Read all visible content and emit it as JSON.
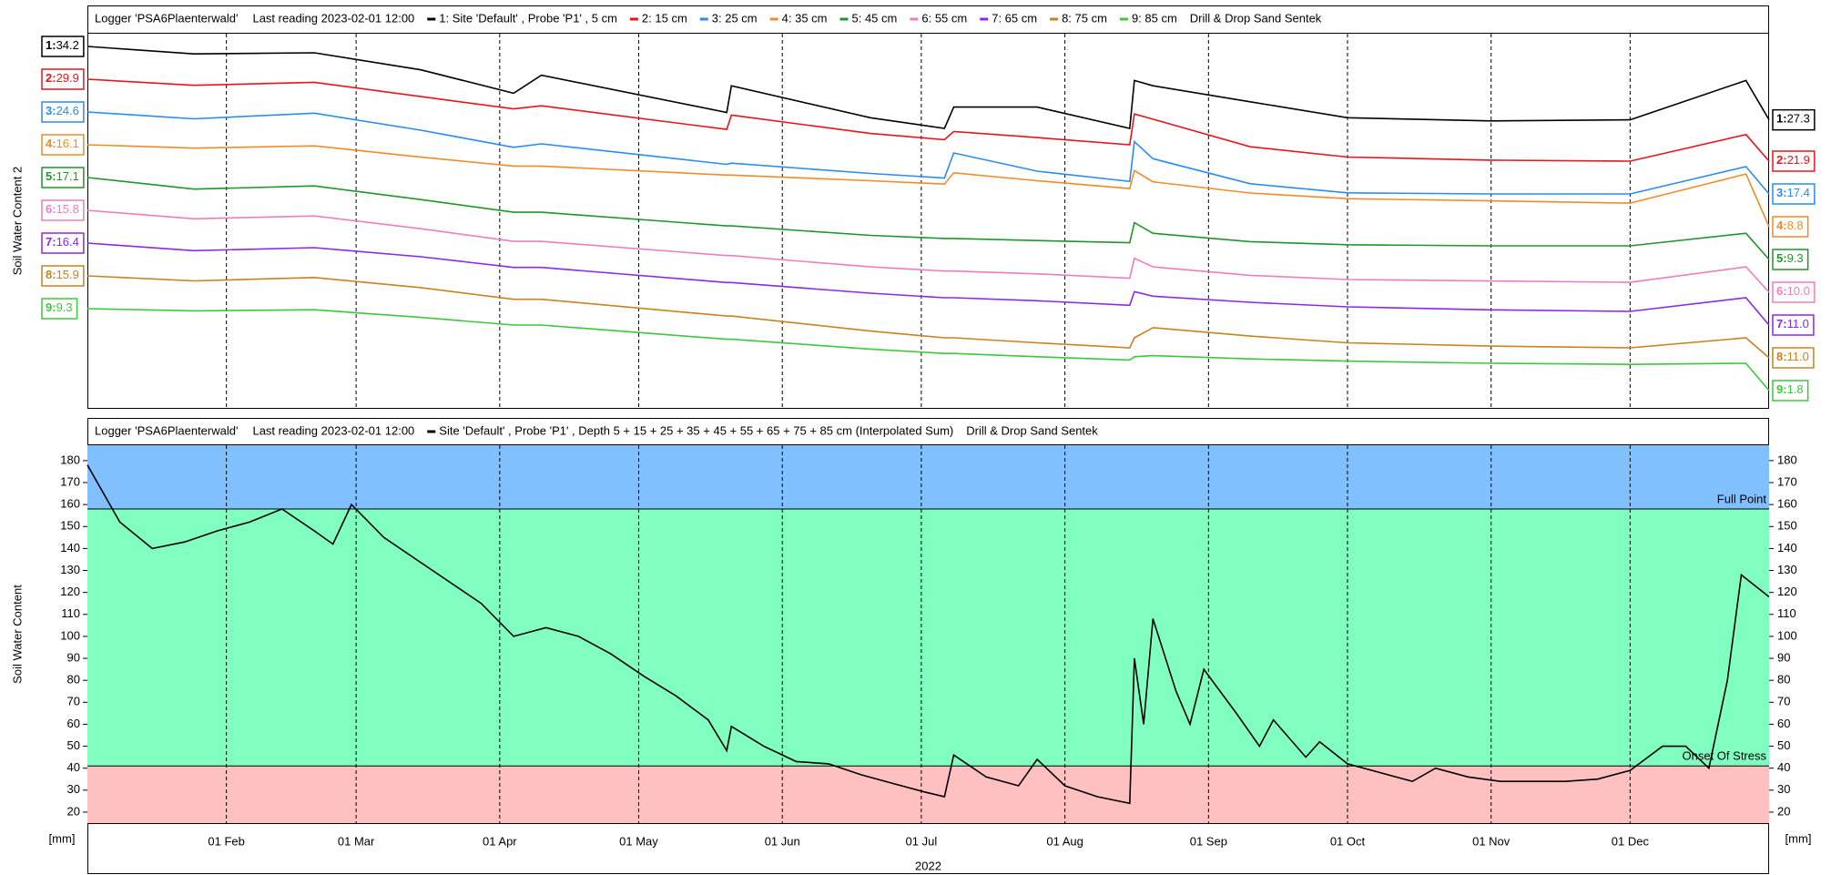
{
  "chart_data": [
    {
      "type": "line",
      "header": [
        "Logger 'PSA6Plaenterwald'",
        "Last reading 2023-02-01 12:00"
      ],
      "sensor": "Drill & Drop Sand Sentek",
      "ylabel": "Soil Water Content 2",
      "xlim": [
        "2022-01-02",
        "2022-12-31"
      ],
      "xticks": [
        {
          "value": "2022-02-01",
          "label": "01 Feb"
        },
        {
          "value": "2022-03-01",
          "label": "01 Mar"
        },
        {
          "value": "2022-04-01",
          "label": "01 Apr"
        },
        {
          "value": "2022-05-01",
          "label": "01 May"
        },
        {
          "value": "2022-06-01",
          "label": "01 Jun"
        },
        {
          "value": "2022-07-01",
          "label": "01 Jul"
        },
        {
          "value": "2022-08-01",
          "label": "01 Aug"
        },
        {
          "value": "2022-09-01",
          "label": "01 Sep"
        },
        {
          "value": "2022-10-01",
          "label": "01 Oct"
        },
        {
          "value": "2022-11-01",
          "label": "01 Nov"
        },
        {
          "value": "2022-12-01",
          "label": "01 Dec"
        }
      ],
      "x": [
        "2022-01-02",
        "2022-01-25",
        "2022-02-20",
        "2022-03-15",
        "2022-04-04",
        "2022-04-10",
        "2022-05-20",
        "2022-05-21",
        "2022-06-20",
        "2022-07-06",
        "2022-07-08",
        "2022-07-26",
        "2022-08-15",
        "2022-08-16",
        "2022-08-20",
        "2022-09-10",
        "2022-10-01",
        "2022-11-01",
        "2022-12-01",
        "2022-12-26",
        "2022-12-31"
      ],
      "series": [
        {
          "tag": "1:",
          "name": "1: Site 'Default' , Probe 'P1' , 5 cm",
          "color": "#000000",
          "labels": [
            "34.2",
            "27.3"
          ],
          "values": [
            34.2,
            33.5,
            33.6,
            32,
            29.8,
            31.5,
            28,
            30.5,
            27.5,
            26.5,
            28.5,
            28.5,
            26.5,
            31,
            30.5,
            29,
            27.5,
            27.2,
            27.3,
            31,
            27.3
          ]
        },
        {
          "tag": "2:",
          "name": "2: 15 cm",
          "color": "#e8141c",
          "labels": [
            "29.9",
            "21.9"
          ],
          "values": [
            29.9,
            29.3,
            29.6,
            28.2,
            27,
            27.3,
            25,
            26.4,
            24.6,
            24,
            24.8,
            24.2,
            23.5,
            26.5,
            26,
            23.3,
            22.3,
            22,
            21.9,
            24.5,
            21.9
          ]
        },
        {
          "tag": "3:",
          "name": "3: 25 cm",
          "color": "#2a8cf0",
          "labels": [
            "24.6",
            "17.4"
          ],
          "values": [
            24.6,
            24,
            24.5,
            23,
            21.5,
            21.8,
            20,
            20.1,
            19.2,
            18.8,
            21,
            19.4,
            18.5,
            22,
            20.5,
            18.3,
            17.5,
            17.4,
            17.4,
            19.8,
            17.4
          ]
        },
        {
          "tag": "4:",
          "name": "4: 35 cm",
          "color": "#f08c28",
          "labels": [
            "16.1",
            "8.8"
          ],
          "values": [
            16.1,
            15.8,
            16,
            15,
            14.2,
            14.2,
            13.4,
            13.4,
            12.9,
            12.6,
            13.6,
            12.9,
            12.2,
            13.8,
            12.8,
            11.8,
            11.3,
            11.1,
            10.9,
            13.5,
            8.8
          ]
        },
        {
          "tag": "5:",
          "name": "5: 45 cm",
          "color": "#1e9628",
          "labels": [
            "17.1",
            "9.3"
          ],
          "values": [
            17.1,
            16,
            16.3,
            15,
            13.8,
            13.8,
            12.5,
            12.5,
            11.6,
            11.3,
            11.3,
            11.1,
            10.9,
            12.8,
            11.8,
            11,
            10.7,
            10.6,
            10.6,
            11.8,
            9.3
          ]
        },
        {
          "tag": "6:",
          "name": "6: 55 cm",
          "color": "#f07cc0",
          "labels": [
            "15.8",
            "10.0"
          ],
          "values": [
            15.8,
            15.2,
            15.4,
            14.5,
            13.6,
            13.6,
            12.6,
            12.6,
            11.8,
            11.5,
            11.5,
            11.3,
            11,
            12.4,
            11.8,
            11.2,
            10.9,
            10.8,
            10.7,
            11.8,
            10
          ]
        },
        {
          "tag": "7:",
          "name": "7: 65 cm",
          "color": "#8c28e6",
          "labels": [
            "16.4",
            "11.0"
          ],
          "values": [
            16.4,
            15.9,
            16.1,
            15.5,
            14.8,
            14.8,
            13.8,
            13.8,
            13.1,
            12.8,
            12.8,
            12.6,
            12.3,
            13.2,
            12.9,
            12.5,
            12.2,
            12,
            11.9,
            12.8,
            11
          ]
        },
        {
          "tag": "8:",
          "name": "8: 75 cm",
          "color": "#c8821e",
          "labels": [
            "15.9",
            "11.0"
          ],
          "values": [
            15.9,
            15.6,
            15.8,
            15.2,
            14.5,
            14.5,
            13.5,
            13.5,
            12.6,
            12.2,
            12.2,
            11.9,
            11.6,
            12.2,
            12.8,
            12.3,
            11.9,
            11.7,
            11.6,
            12.2,
            11
          ]
        },
        {
          "tag": "9:",
          "name": "9: 85 cm",
          "color": "#3cc83c",
          "labels": [
            "9.3",
            "1.8"
          ],
          "values": [
            9.3,
            9.1,
            9.2,
            8.5,
            7.8,
            7.8,
            6.5,
            6.5,
            5.6,
            5.2,
            5.2,
            4.9,
            4.6,
            4.9,
            5,
            4.7,
            4.5,
            4.3,
            4.2,
            4.3,
            1.8
          ]
        }
      ]
    },
    {
      "type": "line",
      "header": [
        "Logger 'PSA6Plaenterwald'",
        "Last reading 2023-02-01 12:00"
      ],
      "sensor": "Drill & Drop Sand Sentek",
      "ylabel": "Soil Water Content",
      "yunit": "[mm]",
      "xlabel": "2022",
      "xlim": [
        "2022-01-02",
        "2022-12-31"
      ],
      "xticks": [
        {
          "value": "2022-02-01",
          "label": "01 Feb"
        },
        {
          "value": "2022-03-01",
          "label": "01 Mar"
        },
        {
          "value": "2022-04-01",
          "label": "01 Apr"
        },
        {
          "value": "2022-05-01",
          "label": "01 May"
        },
        {
          "value": "2022-06-01",
          "label": "01 Jun"
        },
        {
          "value": "2022-07-01",
          "label": "01 Jul"
        },
        {
          "value": "2022-08-01",
          "label": "01 Aug"
        },
        {
          "value": "2022-09-01",
          "label": "01 Sep"
        },
        {
          "value": "2022-10-01",
          "label": "01 Oct"
        },
        {
          "value": "2022-11-01",
          "label": "01 Nov"
        },
        {
          "value": "2022-12-01",
          "label": "01 Dec"
        }
      ],
      "ylim": [
        15,
        187
      ],
      "yticks": [
        20,
        30,
        40,
        50,
        60,
        70,
        80,
        90,
        100,
        110,
        120,
        130,
        140,
        150,
        160,
        170,
        180
      ],
      "thresholds": [
        {
          "label": "Full Point",
          "value": 158
        },
        {
          "label": "Onset Of Stress",
          "value": 41
        }
      ],
      "zone_colors": [
        "#80c0ff",
        "#80ffc0",
        "#ffc0c0"
      ],
      "x": [
        "2022-01-02",
        "2022-01-09",
        "2022-01-16",
        "2022-01-23",
        "2022-01-30",
        "2022-02-06",
        "2022-02-13",
        "2022-02-20",
        "2022-02-24",
        "2022-02-28",
        "2022-03-07",
        "2022-03-14",
        "2022-03-21",
        "2022-03-28",
        "2022-04-04",
        "2022-04-11",
        "2022-04-18",
        "2022-04-25",
        "2022-05-02",
        "2022-05-09",
        "2022-05-16",
        "2022-05-20",
        "2022-05-21",
        "2022-05-28",
        "2022-06-04",
        "2022-06-11",
        "2022-06-18",
        "2022-06-25",
        "2022-07-02",
        "2022-07-06",
        "2022-07-08",
        "2022-07-15",
        "2022-07-22",
        "2022-07-26",
        "2022-08-01",
        "2022-08-08",
        "2022-08-15",
        "2022-08-16",
        "2022-08-18",
        "2022-08-20",
        "2022-08-25",
        "2022-08-28",
        "2022-08-31",
        "2022-09-07",
        "2022-09-12",
        "2022-09-15",
        "2022-09-22",
        "2022-09-25",
        "2022-10-01",
        "2022-10-08",
        "2022-10-15",
        "2022-10-20",
        "2022-10-27",
        "2022-11-03",
        "2022-11-10",
        "2022-11-17",
        "2022-11-24",
        "2022-12-01",
        "2022-12-08",
        "2022-12-13",
        "2022-12-18",
        "2022-12-22",
        "2022-12-25",
        "2022-12-31"
      ],
      "series": [
        {
          "name": "Site 'Default' , Probe 'P1' , Depth 5 + 15 + 25 + 35 + 45 + 55 + 65 + 75 + 85 cm (Interpolated Sum)",
          "color": "#000000",
          "values": [
            178,
            152,
            140,
            143,
            148,
            152,
            158,
            148,
            142,
            160,
            145,
            135,
            125,
            115,
            100,
            104,
            100,
            92,
            82,
            73,
            62,
            48,
            59,
            50,
            43,
            42,
            37,
            33,
            29,
            27,
            46,
            36,
            32,
            44,
            32,
            27,
            24,
            90,
            60,
            108,
            75,
            60,
            85,
            65,
            50,
            62,
            45,
            52,
            42,
            38,
            34,
            40,
            36,
            34,
            34,
            34,
            35,
            39,
            50,
            50,
            40,
            80,
            128,
            118
          ]
        }
      ]
    }
  ]
}
